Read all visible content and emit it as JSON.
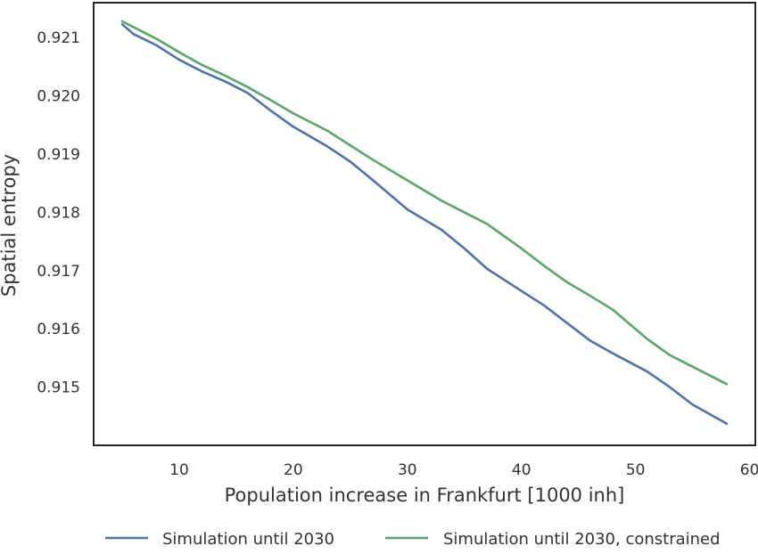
{
  "chart_data": {
    "type": "line",
    "title": "",
    "xlabel": "Population increase in Frankfurt [1000 inh]",
    "ylabel": "Spatial entropy",
    "xlim": [
      2.5,
      60.5
    ],
    "ylim": [
      0.914,
      0.9216
    ],
    "xticks": [
      10,
      20,
      30,
      40,
      50,
      60
    ],
    "yticks": [
      0.915,
      0.916,
      0.917,
      0.918,
      0.919,
      0.92,
      0.921
    ],
    "ytick_labels": [
      "0.915",
      "0.916",
      "0.917",
      "0.918",
      "0.919",
      "0.920",
      "0.921"
    ],
    "grid": false,
    "legend_position": "bottom-center, outside plot",
    "series": [
      {
        "name": "Simulation until 2030",
        "color": "#4c72b0",
        "x": [
          5,
          6,
          8,
          10,
          12,
          14,
          16,
          18,
          20,
          23,
          25,
          27,
          30,
          33,
          35,
          37,
          40,
          42,
          44,
          46,
          48,
          51,
          53,
          55,
          58
        ],
        "y": [
          0.92123,
          0.92106,
          0.92087,
          0.92062,
          0.92042,
          0.92025,
          0.92005,
          0.91975,
          0.91947,
          0.91913,
          0.91887,
          0.91855,
          0.91805,
          0.9177,
          0.91738,
          0.91703,
          0.91665,
          0.9164,
          0.9161,
          0.9158,
          0.91558,
          0.91527,
          0.915,
          0.9147,
          0.91437
        ]
      },
      {
        "name": "Simulation until 2030, constrained",
        "color": "#55a868",
        "x": [
          5,
          6,
          8,
          10,
          12,
          14,
          16,
          18,
          20,
          23,
          25,
          27,
          30,
          33,
          35,
          37,
          40,
          42,
          44,
          46,
          48,
          51,
          53,
          55,
          58
        ],
        "y": [
          0.92128,
          0.92118,
          0.92098,
          0.92075,
          0.92053,
          0.92035,
          0.92015,
          0.91993,
          0.9197,
          0.9194,
          0.91915,
          0.9189,
          0.91855,
          0.9182,
          0.918,
          0.9178,
          0.91738,
          0.91708,
          0.9168,
          0.91657,
          0.91633,
          0.91583,
          0.91555,
          0.91535,
          0.91505
        ]
      }
    ]
  }
}
